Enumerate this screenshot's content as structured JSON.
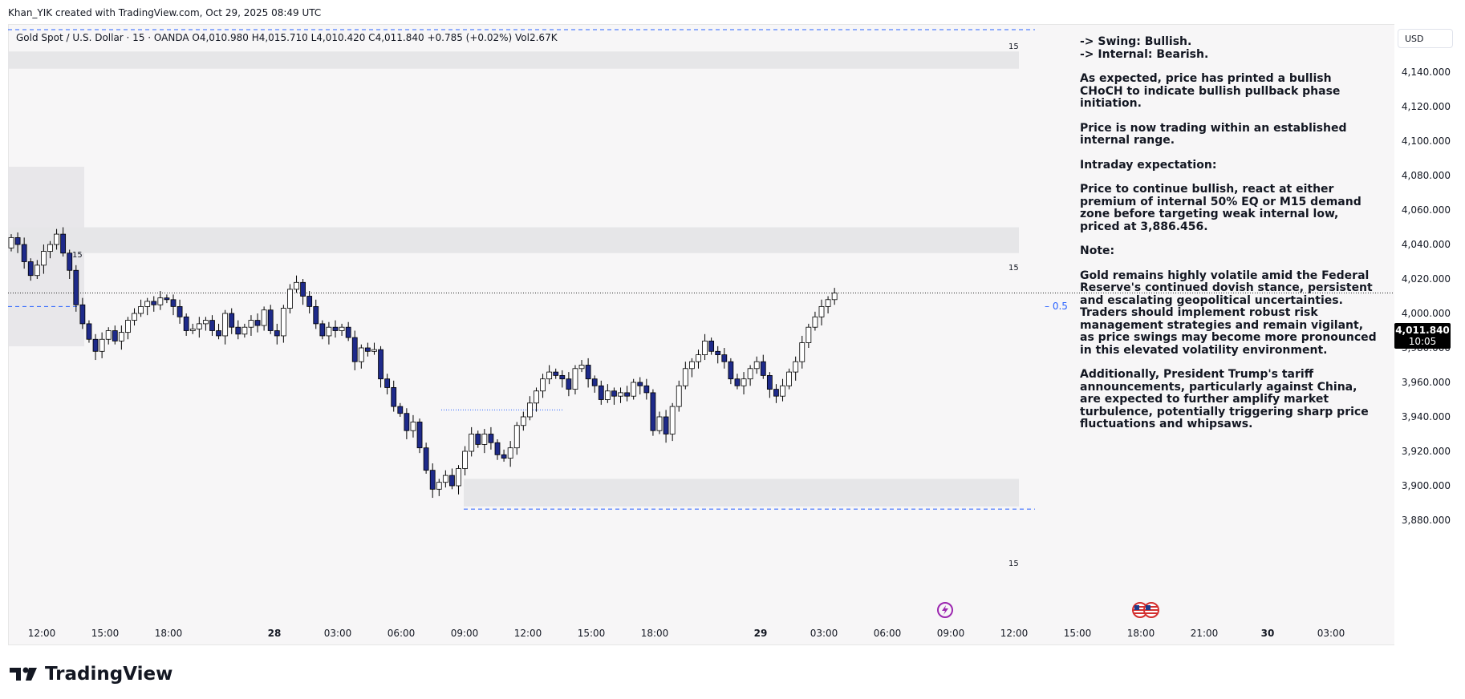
{
  "credit": "Khan_YIK created with TradingView.com, Oct 29, 2025 08:49 UTC",
  "symbol_line": "Gold Spot / U.S. Dollar · 15 · OANDA  O4,010.980  H4,015.710  L4,010.420  C4,011.840  +0.785 (+0.02%)  Vol2.67K",
  "currency_button": "USD",
  "last_price": "4,011.840",
  "countdown": "10:05",
  "zone_label": "15",
  "level_label": "0.5",
  "brand": "TradingView",
  "note_paragraphs": [
    "-> Swing: Bullish.\n-> Internal: Bearish.",
    "As expected, price has printed a bullish CHoCH to indicate bullish pullback phase initiation.",
    "Price is now trading within an established internal range.",
    "Intraday expectation:",
    "Price to continue bullish, react at either premium of internal 50% EQ or M15 demand zone before targeting weak internal low, priced at 3,886.456.",
    "Note:",
    "Gold remains highly volatile amid the Federal Reserve's continued dovish stance, persistent and escalating geopolitical uncertainties. Traders should implement robust risk management strategies and remain vigilant, as price swings may become more pronounced in this elevated volatility environment.",
    "Additionally, President Trump's tariff announcements, particularly against China, are expected to further amplify market turbulence, potentially triggering sharp price fluctuations and whipsaws."
  ],
  "colors": {
    "bull": "#ffffff",
    "bear": "#1e2a8a",
    "outline": "#000000",
    "zone": "#e6e6e8",
    "dash": "#2962ff",
    "accent": "#9c27b0"
  },
  "chart_data": {
    "type": "candlestick",
    "y_axis_ticks": [
      4140,
      4120,
      4100,
      4080,
      4060,
      4040,
      4020,
      4000,
      3980,
      3960,
      3940,
      3920,
      3900,
      3880
    ],
    "y_axis_labels": [
      "4,140.000",
      "4,120.000",
      "4,100.000",
      "4,080.000",
      "4,060.000",
      "4,040.000",
      "4,020.000",
      "4,000.000",
      "3,980.000",
      "3,960.000",
      "3,940.000",
      "3,920.000",
      "3,900.000",
      "3,880.000"
    ],
    "x_axis_labels": [
      {
        "text": "12:00",
        "bold": false
      },
      {
        "text": "15:00",
        "bold": false
      },
      {
        "text": "18:00",
        "bold": false
      },
      {
        "text": "28",
        "bold": true
      },
      {
        "text": "03:00",
        "bold": false
      },
      {
        "text": "06:00",
        "bold": false
      },
      {
        "text": "09:00",
        "bold": false
      },
      {
        "text": "12:00",
        "bold": false
      },
      {
        "text": "15:00",
        "bold": false
      },
      {
        "text": "18:00",
        "bold": false
      },
      {
        "text": "29",
        "bold": true
      },
      {
        "text": "03:00",
        "bold": false
      },
      {
        "text": "06:00",
        "bold": false
      },
      {
        "text": "09:00",
        "bold": false
      },
      {
        "text": "12:00",
        "bold": false
      },
      {
        "text": "15:00",
        "bold": false
      },
      {
        "text": "18:00",
        "bold": false
      },
      {
        "text": "21:00",
        "bold": false
      },
      {
        "text": "30",
        "bold": true
      },
      {
        "text": "03:00",
        "bold": false
      }
    ],
    "y_range": [
      3872,
      4153
    ],
    "last_price": 4011.84,
    "zones": [
      {
        "low": 4142,
        "high": 4152
      },
      {
        "low": 4035,
        "high": 4050
      },
      {
        "low": 3888,
        "high": 3904
      }
    ],
    "dashed_levels": [
      4153,
      4004,
      3886.456
    ],
    "eq_level": 4019,
    "candles_close": [
      4044,
      4040,
      4030,
      4022,
      4028,
      4036,
      4040,
      4046,
      4035,
      4025,
      4005,
      3994,
      3985,
      3978,
      3985,
      3990,
      3984,
      3989,
      3996,
      4000,
      4004,
      4007,
      4005,
      4009,
      4008,
      4004,
      3998,
      3990,
      3991,
      3994,
      3996,
      3990,
      3987,
      4000,
      3992,
      3988,
      3992,
      3996,
      3993,
      4002,
      3990,
      3987,
      4003,
      4014,
      4018,
      4010,
      4004,
      3994,
      3987,
      3992,
      3990,
      3992,
      3986,
      3972,
      3980,
      3978,
      3979,
      3962,
      3957,
      3946,
      3942,
      3932,
      3937,
      3922,
      3909,
      3898,
      3902,
      3906,
      3900,
      3910,
      3920,
      3930,
      3924,
      3930,
      3925,
      3918,
      3916,
      3922,
      3935,
      3940,
      3948,
      3955,
      3962,
      3966,
      3964,
      3962,
      3956,
      3968,
      3970,
      3962,
      3958,
      3950,
      3955,
      3952,
      3954,
      3952,
      3960,
      3958,
      3954,
      3932,
      3940,
      3930,
      3946,
      3958,
      3968,
      3972,
      3976,
      3984,
      3978,
      3976,
      3972,
      3962,
      3958,
      3962,
      3968,
      3972,
      3964,
      3956,
      3952,
      3958,
      3966,
      3972,
      3983,
      3992,
      3998,
      4004,
      4008,
      4011.84
    ]
  }
}
